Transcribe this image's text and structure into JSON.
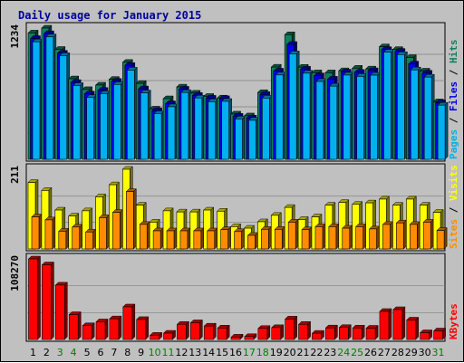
{
  "colors": {
    "background": "#c0c0c0",
    "panel": "#c0c0c0",
    "title": "#0000a0",
    "pages": "#00b0f0",
    "files": "#0000e8",
    "hits": "#108060",
    "sites": "#ff8c00",
    "visits": "#ffff00",
    "kbytes": "#ff0000",
    "day_weekday": "#000000",
    "day_weekend": "#008000",
    "grid": "#808080"
  },
  "chart_data": {
    "type": "bar",
    "title": "Daily usage for January 2015",
    "categories": [
      "1",
      "2",
      "3",
      "4",
      "5",
      "6",
      "7",
      "8",
      "9",
      "10",
      "11",
      "12",
      "13",
      "14",
      "15",
      "16",
      "17",
      "18",
      "19",
      "20",
      "21",
      "22",
      "23",
      "24",
      "25",
      "26",
      "27",
      "28",
      "29",
      "30",
      "31"
    ],
    "weekend_days": [
      "3",
      "4",
      "10",
      "11",
      "17",
      "18",
      "24",
      "25",
      "31"
    ],
    "panels": [
      {
        "name": "pages-files-hits",
        "max_label": "1234",
        "ylim": [
          0,
          1234
        ],
        "legend": [
          "Pages",
          "Files",
          "Hits"
        ],
        "series": [
          {
            "name": "Hits",
            "values": [
              1188,
              1234,
              1034,
              757,
              656,
              698,
              752,
              912,
              714,
              473,
              570,
              680,
              622,
              592,
              577,
              426,
              409,
              628,
              867,
              1172,
              866,
              814,
              814,
              833,
              857,
              850,
              1058,
              1033,
              957,
              830,
              541
            ]
          },
          {
            "name": "Files",
            "values": [
              1136,
              1182,
              998,
              723,
              615,
              649,
              734,
              883,
              663,
              458,
              523,
              660,
              601,
              575,
              571,
              405,
              389,
              610,
              830,
              1081,
              848,
              786,
              754,
              821,
              818,
              834,
              1033,
              1016,
              897,
              810,
              532
            ]
          },
          {
            "name": "Pages",
            "values": [
              1105,
              1151,
              975,
              694,
              581,
              618,
              704,
              839,
              625,
              430,
              494,
              628,
              577,
              542,
              545,
              380,
              367,
              576,
              793,
              992,
              810,
              732,
              688,
              792,
              780,
              791,
              1008,
              985,
              841,
              773,
              509
            ]
          }
        ]
      },
      {
        "name": "sites-visits",
        "max_label": "211",
        "ylim": [
          0,
          211
        ],
        "legend": [
          "Sites",
          "Visits"
        ],
        "series": [
          {
            "name": "Visits",
            "values": [
              176,
              155,
              103,
              87,
              101,
              138,
              170,
              211,
              116,
              71,
              101,
              98,
              98,
              103,
              100,
              59,
              55,
              72,
              89,
              110,
              78,
              85,
              116,
              123,
              118,
              122,
              132,
              116,
              132,
              116,
              97
            ]
          },
          {
            "name": "Sites",
            "values": [
              85,
              77,
              47,
              58,
              45,
              83,
              97,
              152,
              65,
              48,
              48,
              48,
              48,
              48,
              51,
              46,
              36,
              52,
              52,
              71,
              51,
              59,
              59,
              55,
              59,
              53,
              65,
              69,
              65,
              71,
              49
            ]
          }
        ]
      },
      {
        "name": "kbytes",
        "max_label": "108270",
        "ylim": [
          0,
          108270
        ],
        "legend": [
          "KBytes"
        ],
        "series": [
          {
            "name": "KBytes",
            "values": [
              108270,
              100325,
              73100,
              33450,
              18590,
              23740,
              27820,
              43850,
              26840,
              5660,
              8460,
              20420,
              22570,
              18040,
              15450,
              3230,
              3920,
              14840,
              15970,
              27520,
              20360,
              8360,
              15590,
              16090,
              15490,
              15150,
              37740,
              40160,
              26140,
              9100,
              11550
            ]
          }
        ]
      }
    ]
  }
}
